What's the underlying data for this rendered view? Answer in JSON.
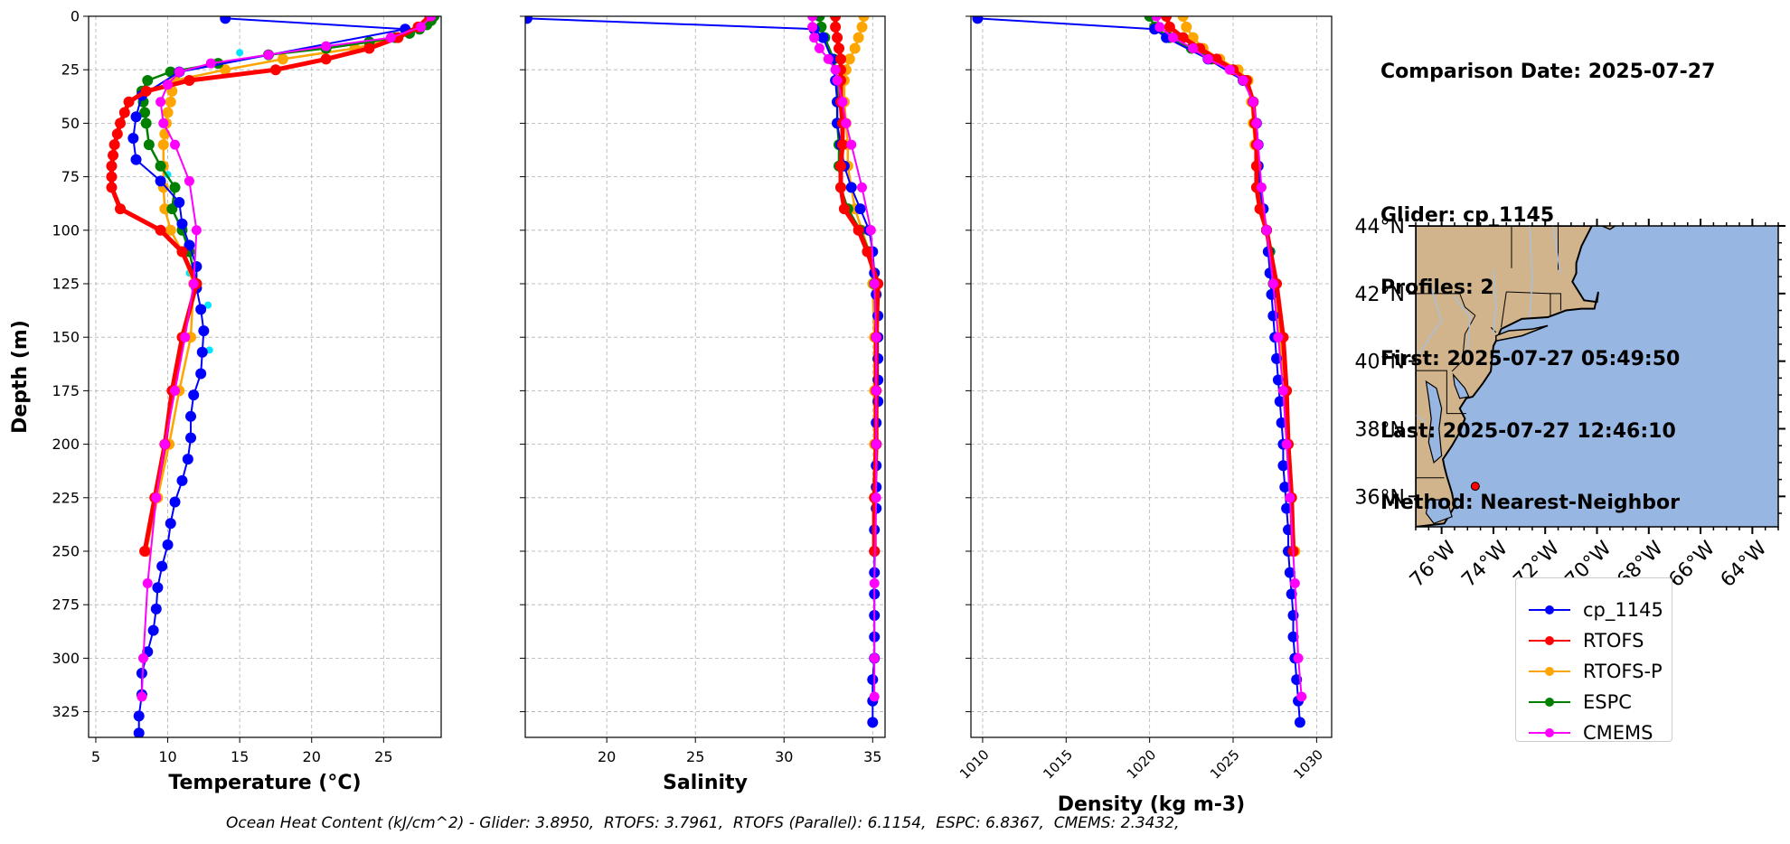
{
  "info": {
    "comparison_date": "Comparison Date: 2025-07-27",
    "glider": "Glider: cp_1145",
    "profiles": "Profiles: 2",
    "first": "First: 2025-07-27 05:49:50",
    "last": "Last: 2025-07-27 12:46:10",
    "method": "Method: Nearest-Neighbor"
  },
  "ohc_text": "Ocean Heat Content (kJ/cm^2) - Glider: 3.8950,  RTOFS: 3.7961,  RTOFS (Parallel): 6.1154,  ESPC: 6.8367,  CMEMS: 2.3432,",
  "colors": {
    "cp_1145": "#0000ff",
    "RTOFS": "#ff0000",
    "RTOFS-P": "#ffa500",
    "ESPC": "#008000",
    "CMEMS": "#ff00ff",
    "land": "#d2b48c",
    "ocean": "#97b6e1",
    "rivers": "#a9c0d8",
    "scatter_extra": "#00e5ff"
  },
  "legend": [
    "cp_1145",
    "RTOFS",
    "RTOFS-P",
    "ESPC",
    "CMEMS"
  ],
  "chart_data": [
    {
      "type": "line",
      "ylabel": "Depth (m)",
      "xlabel": "Temperature (°C)",
      "xlim": [
        4.5,
        29
      ],
      "ylim": [
        337,
        0
      ],
      "xticks": [
        5,
        10,
        15,
        20,
        25
      ],
      "yticks": [
        0,
        25,
        50,
        75,
        100,
        125,
        150,
        175,
        200,
        225,
        250,
        275,
        300,
        325
      ],
      "grid": true,
      "series": [
        {
          "name": "cp_1145",
          "depth": [
            1,
            6,
            26,
            37,
            47,
            57,
            67,
            77,
            87,
            97,
            107,
            117,
            127,
            137,
            147,
            157,
            167,
            177,
            187,
            197,
            207,
            217,
            227,
            237,
            247,
            257,
            267,
            277,
            287,
            297,
            307,
            317,
            327,
            335
          ],
          "values": [
            14,
            26.5,
            10.8,
            8.2,
            7.8,
            7.6,
            7.8,
            9.5,
            10.8,
            11.0,
            11.5,
            12.0,
            12.0,
            12.3,
            12.5,
            12.4,
            12.3,
            11.8,
            11.6,
            11.6,
            11.4,
            11.0,
            10.5,
            10.2,
            10.0,
            9.6,
            9.3,
            9.2,
            9.0,
            8.6,
            8.2,
            8.2,
            8.0,
            8.0
          ]
        },
        {
          "name": "RTOFS",
          "depth": [
            0,
            5,
            10,
            15,
            20,
            25,
            30,
            35,
            40,
            45,
            50,
            55,
            60,
            65,
            70,
            75,
            80,
            90,
            100,
            110,
            125,
            150,
            175,
            200,
            225,
            250
          ],
          "values": [
            28.2,
            27.4,
            26.0,
            24.0,
            21.0,
            17.5,
            11.5,
            8.5,
            7.3,
            7.0,
            6.7,
            6.5,
            6.3,
            6.2,
            6.1,
            6.1,
            6.1,
            6.7,
            9.5,
            11.0,
            12.0,
            11.0,
            10.3,
            9.8,
            9.1,
            8.4
          ]
        },
        {
          "name": "RTOFS-P",
          "depth": [
            0,
            5,
            10,
            15,
            20,
            25,
            30,
            35,
            40,
            45,
            50,
            55,
            60,
            70,
            80,
            90,
            100,
            110,
            125,
            150,
            175,
            200,
            225,
            250
          ],
          "values": [
            28.2,
            27.4,
            26.0,
            23.0,
            18.0,
            14.0,
            10.5,
            10.3,
            10.2,
            10.0,
            9.9,
            9.8,
            9.7,
            9.7,
            9.7,
            9.8,
            10.2,
            11.0,
            11.8,
            11.6,
            10.8,
            10.1,
            9.3,
            8.5
          ]
        },
        {
          "name": "ESPC",
          "depth": [
            0,
            2,
            4,
            6,
            8,
            10,
            12,
            15,
            18,
            22,
            26,
            30,
            35,
            40,
            45,
            50,
            60,
            70,
            80,
            90,
            100,
            110,
            125
          ],
          "values": [
            28.5,
            28.3,
            28.0,
            27.5,
            26.8,
            25.8,
            24.0,
            21.0,
            17.0,
            13.5,
            10.2,
            8.6,
            8.2,
            8.3,
            8.4,
            8.5,
            8.7,
            9.5,
            10.5,
            10.3,
            11.0,
            11.5,
            12.0
          ]
        },
        {
          "name": "CMEMS",
          "depth": [
            0,
            5,
            10,
            14,
            18,
            22,
            26,
            32,
            40,
            50,
            60,
            77,
            100,
            125,
            150,
            175,
            200,
            225,
            265,
            300,
            318
          ],
          "values": [
            28.3,
            27.6,
            25.5,
            21.0,
            17.0,
            13.0,
            10.8,
            10.0,
            9.5,
            9.7,
            10.5,
            11.5,
            12.0,
            11.8,
            11.2,
            10.5,
            9.8,
            9.2,
            8.6,
            8.3,
            8.2
          ]
        }
      ]
    },
    {
      "type": "line",
      "xlabel": "Salinity",
      "xlim": [
        15.4,
        35.7
      ],
      "ylim": [
        337,
        0
      ],
      "xticks": [
        20,
        25,
        30,
        35
      ],
      "yticks": [
        0,
        25,
        50,
        75,
        100,
        125,
        150,
        175,
        200,
        225,
        250,
        275,
        300,
        325
      ],
      "grid": true,
      "series": [
        {
          "name": "cp_1145",
          "depth": [
            1,
            6,
            10,
            20,
            30,
            40,
            50,
            60,
            70,
            80,
            90,
            100,
            110,
            120,
            130,
            140,
            150,
            160,
            170,
            180,
            190,
            200,
            210,
            220,
            230,
            240,
            250,
            260,
            270,
            280,
            290,
            300,
            310,
            320,
            330
          ],
          "values": [
            15.5,
            31.7,
            32.2,
            32.7,
            32.9,
            33.0,
            33.0,
            33.2,
            33.4,
            33.8,
            34.3,
            34.8,
            35.0,
            35.1,
            35.2,
            35.3,
            35.3,
            35.3,
            35.3,
            35.3,
            35.2,
            35.2,
            35.2,
            35.2,
            35.2,
            35.1,
            35.1,
            35.1,
            35.1,
            35.1,
            35.1,
            35.1,
            35.0,
            35.0,
            35.0
          ]
        },
        {
          "name": "RTOFS",
          "depth": [
            0,
            5,
            10,
            15,
            20,
            25,
            30,
            40,
            50,
            60,
            70,
            80,
            90,
            100,
            110,
            125,
            150,
            175,
            200,
            225,
            250
          ],
          "values": [
            32.9,
            32.9,
            33.0,
            33.1,
            33.2,
            33.2,
            33.2,
            33.2,
            33.3,
            33.3,
            33.2,
            33.2,
            33.4,
            34.2,
            34.7,
            35.3,
            35.2,
            35.2,
            35.2,
            35.1,
            35.1
          ]
        },
        {
          "name": "RTOFS-P",
          "depth": [
            0,
            5,
            10,
            15,
            20,
            25,
            30,
            40,
            50,
            60,
            70,
            80,
            90,
            100,
            110,
            125,
            150,
            175,
            200,
            225,
            250
          ],
          "values": [
            34.5,
            34.4,
            34.2,
            34.0,
            33.7,
            33.5,
            33.4,
            33.4,
            33.5,
            33.6,
            33.6,
            33.8,
            34.0,
            34.4,
            34.8,
            35.0,
            35.1,
            35.1,
            35.1,
            35.1,
            35.1
          ]
        },
        {
          "name": "ESPC",
          "depth": [
            0,
            5,
            10,
            20,
            30,
            40,
            50,
            60,
            70,
            80,
            90,
            100,
            110,
            125,
            150
          ],
          "values": [
            32.0,
            32.1,
            32.3,
            32.8,
            33.0,
            33.0,
            33.0,
            33.1,
            33.1,
            33.2,
            33.6,
            34.3,
            34.8,
            35.1,
            35.2
          ]
        },
        {
          "name": "CMEMS",
          "depth": [
            0,
            5,
            10,
            15,
            20,
            25,
            30,
            40,
            50,
            60,
            80,
            100,
            125,
            150,
            175,
            200,
            225,
            265,
            300,
            318
          ],
          "values": [
            31.6,
            31.6,
            31.7,
            32.0,
            32.5,
            32.9,
            33.0,
            33.3,
            33.5,
            33.8,
            34.4,
            34.9,
            35.1,
            35.2,
            35.2,
            35.2,
            35.2,
            35.1,
            35.1,
            35.1
          ]
        }
      ]
    },
    {
      "type": "line",
      "xlabel": "Density (kg m-3)",
      "xlim": [
        1009.3,
        1030.9
      ],
      "ylim": [
        337,
        0
      ],
      "xticks": [
        1010,
        1015,
        1020,
        1025,
        1030
      ],
      "yticks": [
        0,
        25,
        50,
        75,
        100,
        125,
        150,
        175,
        200,
        225,
        250,
        275,
        300,
        325
      ],
      "grid": true,
      "series": [
        {
          "name": "cp_1145",
          "depth": [
            1,
            6,
            10,
            20,
            30,
            40,
            50,
            60,
            70,
            80,
            90,
            100,
            110,
            120,
            130,
            140,
            150,
            160,
            170,
            180,
            190,
            200,
            210,
            220,
            230,
            240,
            250,
            260,
            270,
            280,
            290,
            300,
            310,
            320,
            330
          ],
          "values": [
            1009.7,
            1020.3,
            1021.0,
            1023.5,
            1025.6,
            1026.2,
            1026.4,
            1026.5,
            1026.5,
            1026.6,
            1026.8,
            1027.0,
            1027.1,
            1027.2,
            1027.3,
            1027.4,
            1027.5,
            1027.6,
            1027.7,
            1027.8,
            1027.9,
            1028.0,
            1028.0,
            1028.1,
            1028.2,
            1028.3,
            1028.3,
            1028.4,
            1028.5,
            1028.6,
            1028.6,
            1028.7,
            1028.8,
            1028.9,
            1029.0
          ]
        },
        {
          "name": "RTOFS",
          "depth": [
            0,
            5,
            10,
            15,
            20,
            25,
            30,
            40,
            50,
            60,
            70,
            80,
            90,
            100,
            125,
            150,
            175,
            200,
            225,
            250
          ],
          "values": [
            1021.0,
            1021.2,
            1022.0,
            1023.0,
            1024.0,
            1025.0,
            1025.8,
            1026.2,
            1026.3,
            1026.4,
            1026.4,
            1026.4,
            1026.6,
            1027.0,
            1027.6,
            1028.0,
            1028.2,
            1028.3,
            1028.5,
            1028.6
          ]
        },
        {
          "name": "RTOFS-P",
          "depth": [
            0,
            5,
            10,
            15,
            20,
            25,
            30,
            40,
            50,
            60,
            70,
            80,
            90,
            100,
            125,
            150,
            175,
            200,
            225,
            250
          ],
          "values": [
            1022.0,
            1022.2,
            1022.6,
            1023.2,
            1024.2,
            1025.3,
            1025.9,
            1026.1,
            1026.2,
            1026.3,
            1026.4,
            1026.5,
            1026.7,
            1027.0,
            1027.5,
            1027.8,
            1028.1,
            1028.3,
            1028.5,
            1028.7
          ]
        },
        {
          "name": "ESPC",
          "depth": [
            0,
            5,
            10,
            15,
            20,
            25,
            30,
            40,
            50,
            60,
            70,
            80,
            90,
            100,
            110,
            125
          ],
          "values": [
            1020.0,
            1020.3,
            1021.2,
            1022.5,
            1023.7,
            1025.0,
            1025.8,
            1026.2,
            1026.3,
            1026.4,
            1026.5,
            1026.6,
            1026.8,
            1027.0,
            1027.2,
            1027.4
          ]
        },
        {
          "name": "CMEMS",
          "depth": [
            0,
            5,
            10,
            15,
            20,
            25,
            30,
            40,
            50,
            60,
            80,
            100,
            125,
            150,
            175,
            200,
            225,
            265,
            300,
            318
          ],
          "values": [
            1020.4,
            1020.6,
            1021.4,
            1022.6,
            1023.5,
            1024.8,
            1025.6,
            1026.2,
            1026.4,
            1026.5,
            1026.7,
            1027.0,
            1027.4,
            1027.7,
            1028.0,
            1028.2,
            1028.4,
            1028.7,
            1028.9,
            1029.1
          ]
        }
      ]
    }
  ],
  "map": {
    "lat_labels": [
      "44°N",
      "42°N",
      "40°N",
      "38°N",
      "36°N"
    ],
    "lon_labels": [
      "76°W",
      "74°W",
      "72°W",
      "70°W",
      "68°W",
      "66°W",
      "64°W"
    ],
    "lat_values": [
      44,
      42,
      40,
      38,
      36
    ],
    "lon_values": [
      -76,
      -74,
      -72,
      -70,
      -68,
      -66,
      -64
    ],
    "extent": {
      "lon_min": -77,
      "lon_max": -63,
      "lat_min": 35.1,
      "lat_max": 44
    },
    "glider_position": {
      "lon": -74.7,
      "lat": 36.3
    }
  }
}
